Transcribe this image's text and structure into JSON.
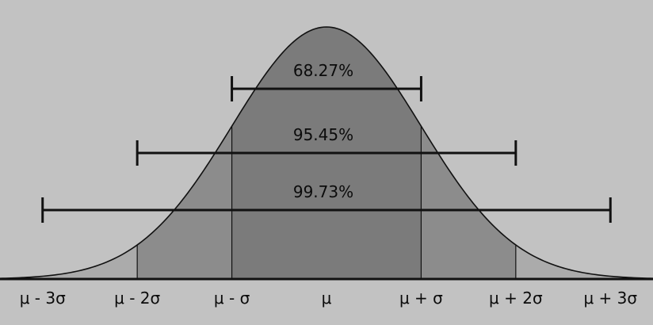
{
  "chart_data": {
    "type": "area",
    "title": "",
    "xlabel": "",
    "ylabel": "",
    "x_unit": "sigma",
    "xlim": [
      -3.45,
      3.45
    ],
    "curve": {
      "function": "standard normal density",
      "mean": 0,
      "sd": 1
    },
    "tick_labels": [
      {
        "x": -3,
        "label": "μ - 3σ"
      },
      {
        "x": -2,
        "label": "μ - 2σ"
      },
      {
        "x": -1,
        "label": "μ - σ"
      },
      {
        "x": 0,
        "label": "μ"
      },
      {
        "x": 1,
        "label": "μ + σ"
      },
      {
        "x": 2,
        "label": "μ + 2σ"
      },
      {
        "x": 3,
        "label": "μ + 3σ"
      }
    ],
    "bands": [
      {
        "from": -1,
        "to": 1,
        "label": "68.27%"
      },
      {
        "from": -2,
        "to": 2,
        "label": "95.45%"
      },
      {
        "from": -3,
        "to": 3,
        "label": "99.73%"
      }
    ],
    "colors": {
      "background": "#c2c2c2",
      "tail_fill": "#ababab",
      "two_sigma_fill": "#8c8c8c",
      "one_sigma_fill": "#7b7b7b",
      "line": "#111111"
    }
  }
}
